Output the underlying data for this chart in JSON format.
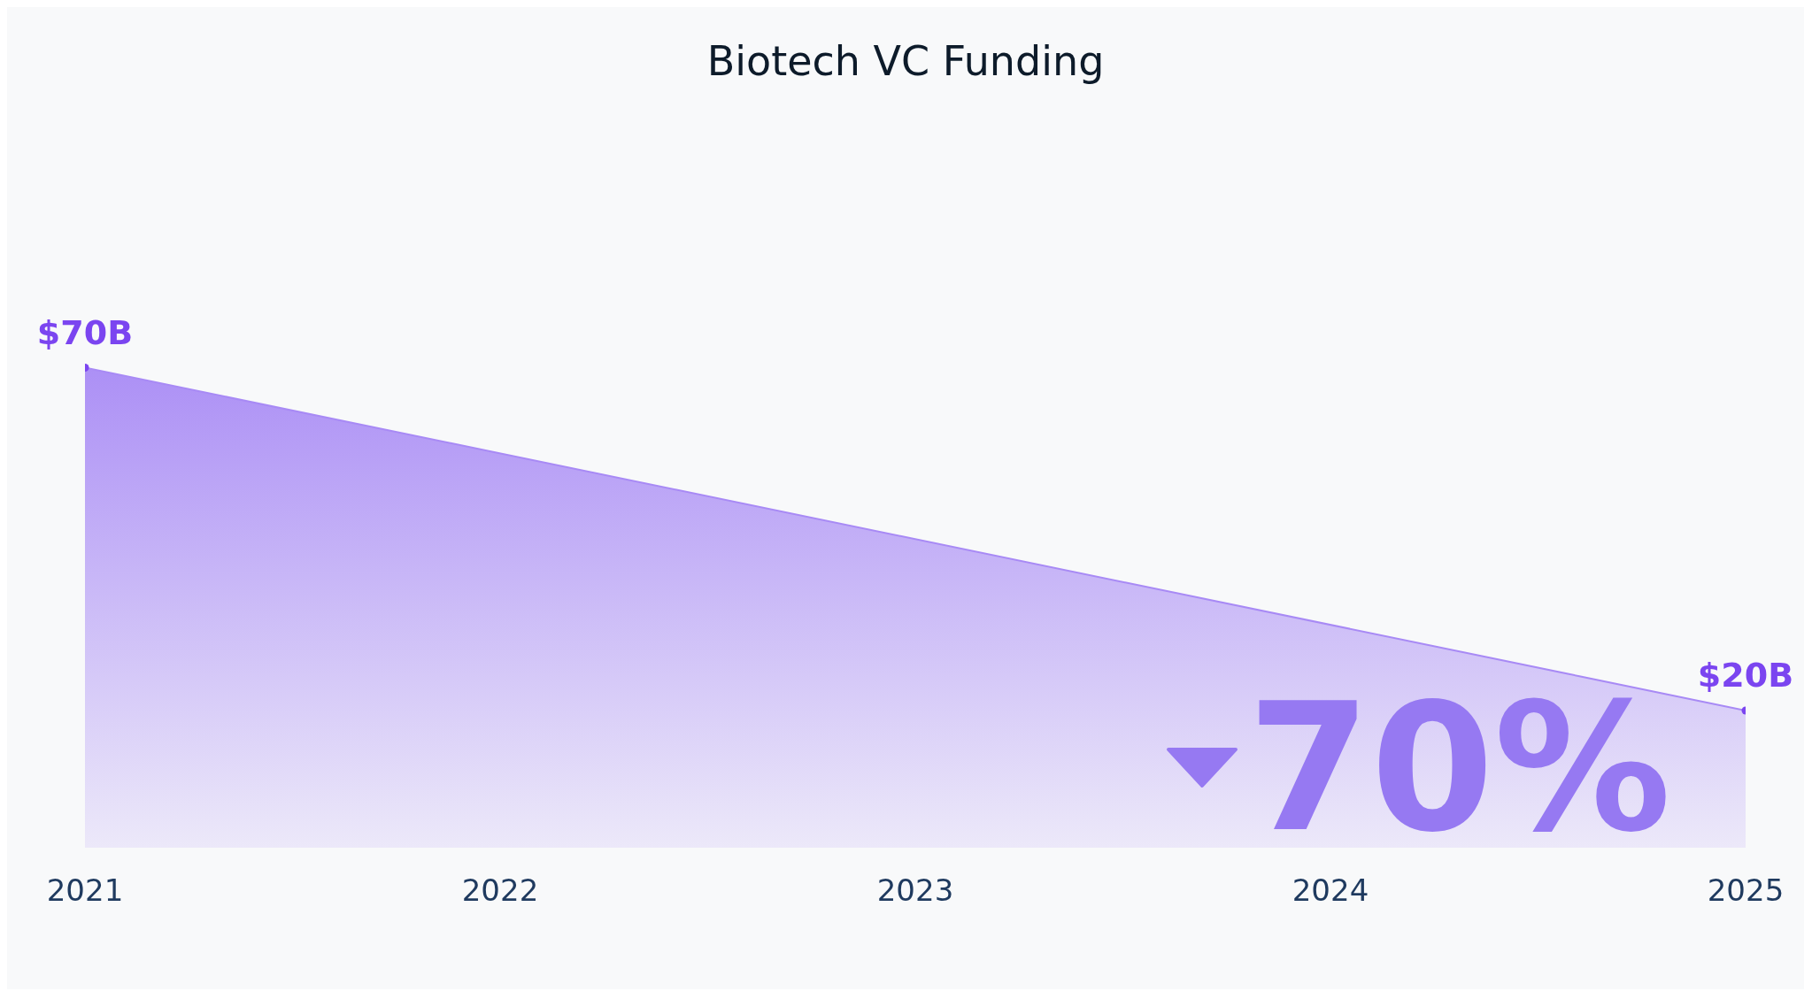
{
  "chart_data": {
    "type": "area",
    "title": "Biotech VC Funding",
    "x": [
      2021,
      2025
    ],
    "xlim": [
      2021,
      2025
    ],
    "xticks": [
      2021,
      2022,
      2023,
      2024,
      2025
    ],
    "tick_labels": "x",
    "series": [
      {
        "color": "#a88af5",
        "values": [
          70,
          20
        ]
      },
      {
        "type": "scatter",
        "color": "#7b45f0",
        "values": [
          70,
          20
        ],
        "value_labels": [
          "$70B",
          "$20B"
        ],
        "marker": "circle"
      }
    ],
    "annotations": [
      "70%"
    ]
  }
}
